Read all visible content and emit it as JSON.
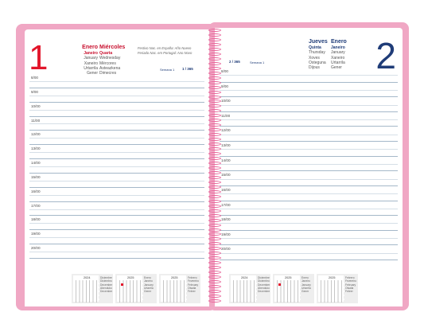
{
  "left_page": {
    "day_number": "1",
    "month_langs": [
      "Enero",
      "Janeiro",
      "January",
      "Xaneiro",
      "Urtarrila",
      "Gener"
    ],
    "weekday_langs": [
      "Miércoles",
      "Quarta",
      "Wednesday",
      "Mércores",
      "Asteazkena",
      "Dimecres"
    ],
    "holiday_lines": [
      "Festivo Nac. en España: Año Nuevo",
      "Feriado Nac. em Portugal: Ano Novo"
    ],
    "week_label": "Semana 1",
    "day_of_year": "1 / 365",
    "hours": [
      "8/00",
      "9/00",
      "10/00",
      "11/00",
      "12/00",
      "13/00",
      "14/00",
      "15/00",
      "16/00",
      "17/00",
      "18/00",
      "19/00",
      "20/00"
    ],
    "calendars": [
      {
        "year": "2024",
        "months": [
          "Diciembre",
          "Diciembro",
          "December",
          "Abenduko",
          "Decembre"
        ]
      },
      {
        "year": "2025",
        "months": [
          "Enero",
          "Janeiro",
          "January",
          "Urtarrila",
          "Gener"
        ]
      },
      {
        "year": "2025",
        "months": [
          "Febrero",
          "Fevereiro",
          "February",
          "Otsaila",
          "Febrer"
        ]
      }
    ]
  },
  "right_page": {
    "day_number": "2",
    "weekday_langs": [
      "Jueves",
      "Quinta",
      "Thursday",
      "Xoves",
      "Osteguna",
      "Dijous"
    ],
    "month_langs": [
      "Enero",
      "Janeiro",
      "January",
      "Xaneiro",
      "Urtarrila",
      "Gener"
    ],
    "day_of_year": "2 / 365",
    "week_label": "Semana 1",
    "hours": [
      "8/00",
      "9/00",
      "10/00",
      "11/00",
      "12/00",
      "13/00",
      "14/00",
      "15/00",
      "16/00",
      "17/00",
      "18/00",
      "19/00",
      "20/00"
    ],
    "calendars": [
      {
        "year": "2024",
        "months": [
          "Diciembre",
          "Diciembro",
          "December",
          "Abenduko",
          "Decembre"
        ]
      },
      {
        "year": "2025",
        "months": [
          "Enero",
          "Janeiro",
          "January",
          "Urtarrila",
          "Gener"
        ]
      },
      {
        "year": "2025",
        "months": [
          "Febrero",
          "Fevereiro",
          "February",
          "Otsaila",
          "Febrer"
        ]
      }
    ]
  },
  "colors": {
    "left_accent": "#e2162b",
    "right_accent": "#1f3c78",
    "cover": "#f0a7c4",
    "spiral": "#e8669a"
  }
}
